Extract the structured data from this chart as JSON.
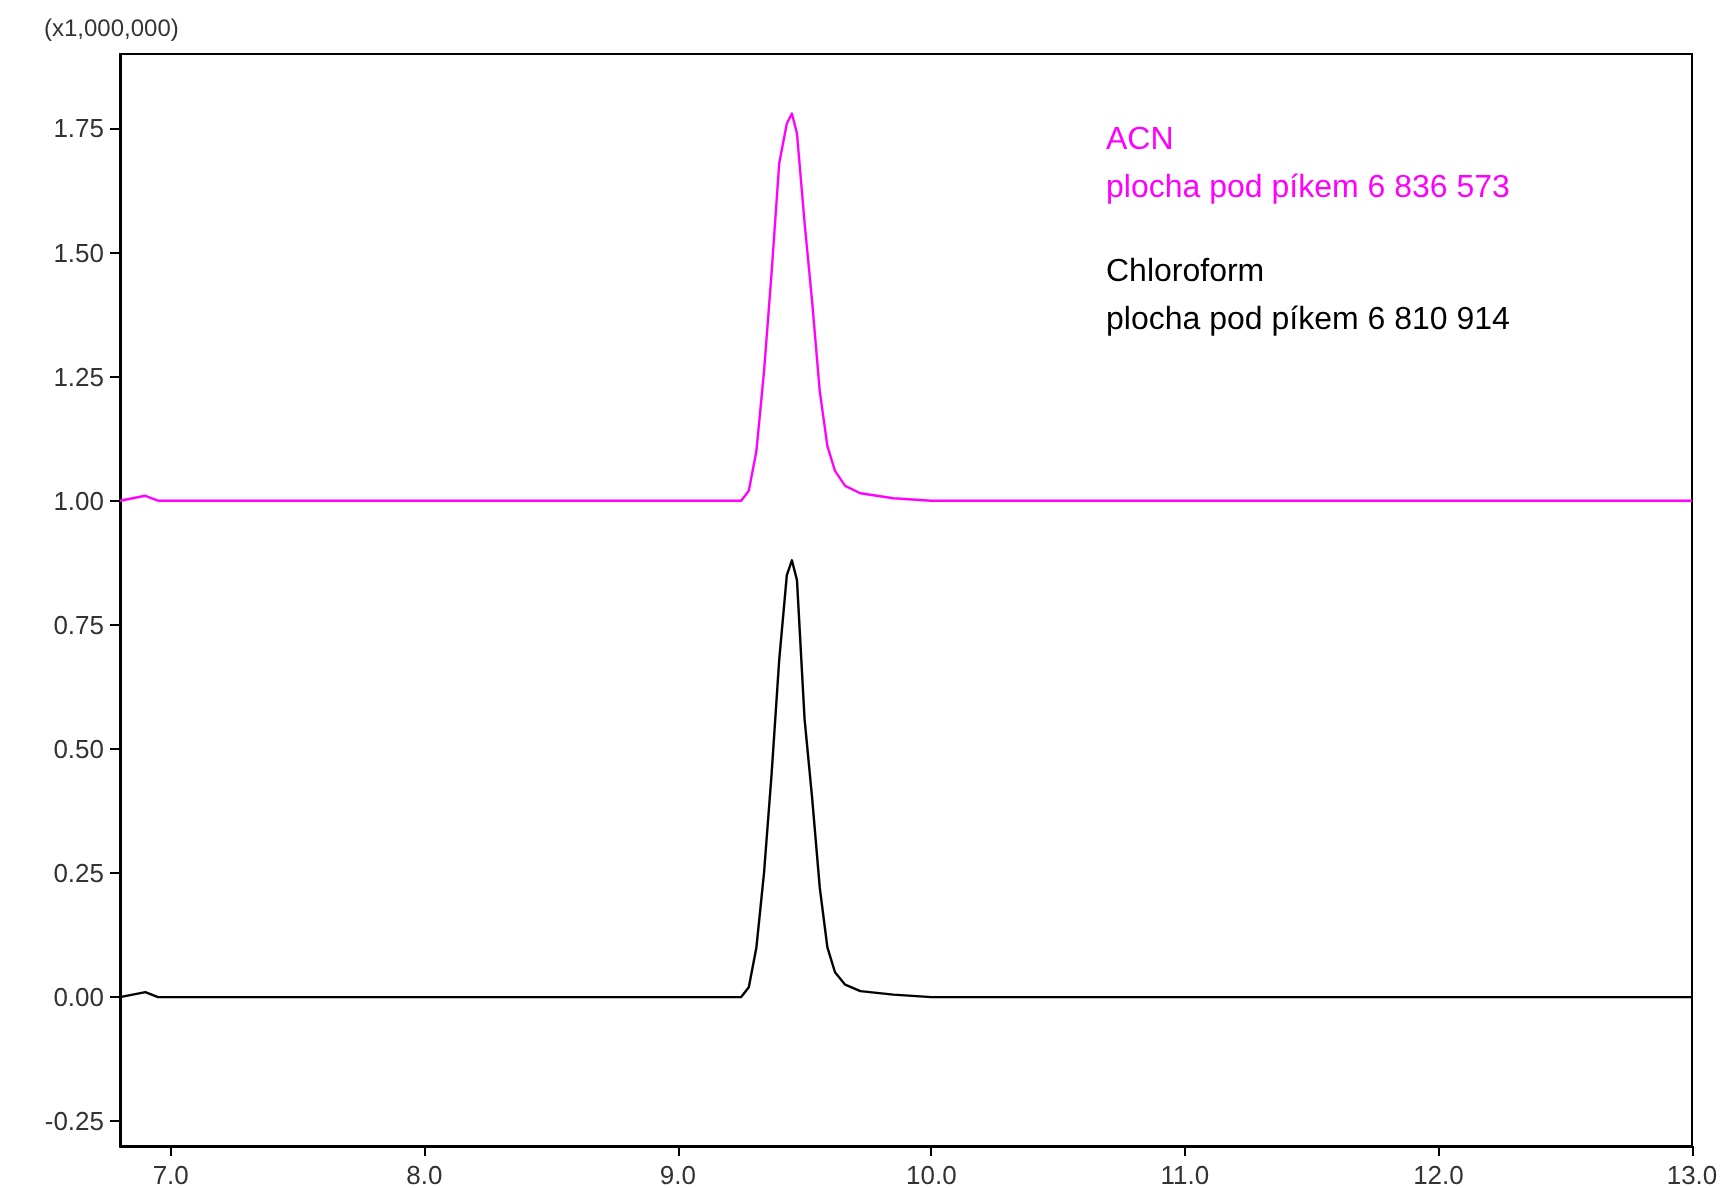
{
  "chart_data": {
    "type": "line",
    "ylabel": "(x1,000,000)",
    "xlim": [
      6.8,
      13.0
    ],
    "ylim": [
      -0.3,
      1.9
    ],
    "xticks": [
      {
        "value": 7,
        "label": "7.0"
      },
      {
        "value": 8,
        "label": "8.0"
      },
      {
        "value": 9,
        "label": "9.0"
      },
      {
        "value": 10,
        "label": "10.0"
      },
      {
        "value": 11,
        "label": "11.0"
      },
      {
        "value": 12,
        "label": "12.0"
      },
      {
        "value": 13,
        "label": "13.0"
      }
    ],
    "yticks": [
      {
        "value": -0.25,
        "label": "-0.25"
      },
      {
        "value": 0,
        "label": "0.00"
      },
      {
        "value": 0.25,
        "label": "0.25"
      },
      {
        "value": 0.5,
        "label": "0.50"
      },
      {
        "value": 0.75,
        "label": "0.75"
      },
      {
        "value": 1,
        "label": "1.00"
      },
      {
        "value": 1.25,
        "label": "1.25"
      },
      {
        "value": 1.5,
        "label": "1.50"
      },
      {
        "value": 1.75,
        "label": "1.75"
      }
    ],
    "grid": false,
    "legend": false,
    "marker": "none",
    "line_style": "solid",
    "annotations": [
      "plocha pod píkem 6 836 573",
      "plocha pod píkem 6 810 914"
    ],
    "series": [
      {
        "name": "ACN",
        "color": "#ff00ff",
        "x": [
          6.8,
          6.9,
          6.95,
          7.0,
          7.5,
          8.0,
          8.5,
          9.0,
          9.25,
          9.28,
          9.31,
          9.34,
          9.37,
          9.4,
          9.43,
          9.45,
          9.47,
          9.5,
          9.53,
          9.56,
          9.59,
          9.62,
          9.66,
          9.72,
          9.85,
          10.0,
          10.5,
          11.0,
          11.5,
          12.0,
          12.5,
          13.0
        ],
        "values": [
          1.0,
          1.01,
          1.0,
          1.0,
          1.0,
          1.0,
          1.0,
          1.0,
          1.0,
          1.02,
          1.1,
          1.26,
          1.46,
          1.68,
          1.76,
          1.78,
          1.74,
          1.56,
          1.4,
          1.22,
          1.11,
          1.06,
          1.03,
          1.015,
          1.005,
          1.0,
          1.0,
          1.0,
          1.0,
          1.0,
          1.0,
          1.0
        ]
      },
      {
        "name": "Chloroform",
        "color": "#000000",
        "x": [
          6.8,
          6.9,
          6.95,
          7.0,
          7.5,
          8.0,
          8.5,
          9.0,
          9.25,
          9.28,
          9.31,
          9.34,
          9.37,
          9.4,
          9.43,
          9.45,
          9.47,
          9.5,
          9.53,
          9.56,
          9.59,
          9.62,
          9.66,
          9.72,
          9.85,
          10.0,
          10.5,
          11.0,
          11.5,
          12.0,
          12.5,
          13.0
        ],
        "values": [
          0.0,
          0.01,
          0.0,
          0.0,
          0.0,
          0.0,
          0.0,
          0.0,
          0.0,
          0.02,
          0.1,
          0.25,
          0.45,
          0.68,
          0.85,
          0.88,
          0.84,
          0.56,
          0.4,
          0.22,
          0.1,
          0.05,
          0.025,
          0.012,
          0.005,
          0.0,
          0.0,
          0.0,
          0.0,
          0.0,
          0.0,
          0.0
        ]
      }
    ]
  }
}
